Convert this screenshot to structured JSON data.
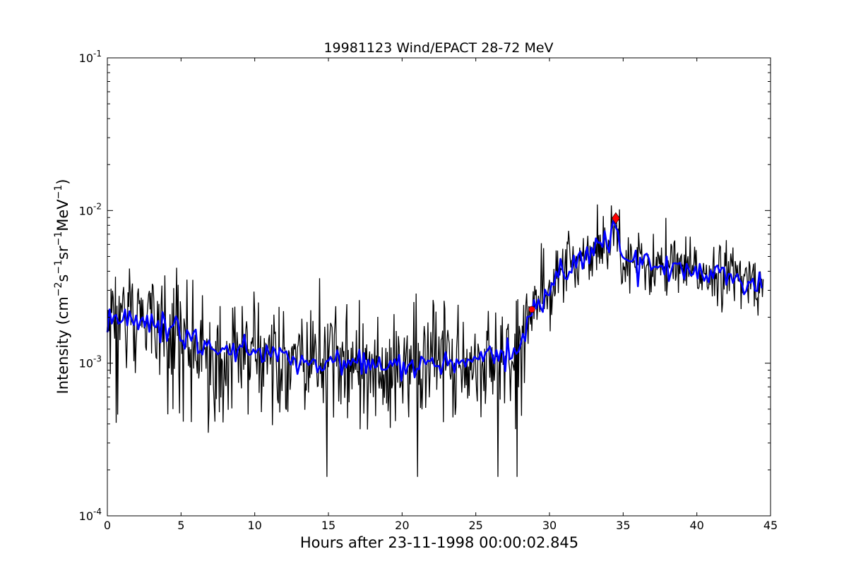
{
  "chart_data": {
    "type": "line",
    "title": "19981123 Wind/EPACT 28-72 MeV",
    "xlabel": "Hours after 23-11-1998 00:00:02.845",
    "ylabel": {
      "prefix": "Intensity (cm",
      "sup1": "−2",
      "mid1": "s",
      "sup2": "−1",
      "mid2": "sr",
      "sup3": "−1",
      "mid3": "MeV",
      "sup4": "−1",
      "suffix": ")"
    },
    "xlim": [
      0,
      45
    ],
    "ylim": [
      0.0001,
      0.1
    ],
    "yscale": "log",
    "grid": false,
    "x_ticks": [
      "0",
      "5",
      "10",
      "15",
      "20",
      "25",
      "30",
      "35",
      "40",
      "45"
    ],
    "y_ticks": [
      {
        "base": "10",
        "exp": "-4"
      },
      {
        "base": "10",
        "exp": "-3"
      },
      {
        "base": "10",
        "exp": "-2"
      },
      {
        "base": "10",
        "exp": "-1"
      }
    ],
    "series": [
      {
        "color": "#000000",
        "style": "thin line, high-frequency noisy raw intensity",
        "x": [
          0,
          1,
          2,
          3,
          4,
          5,
          6,
          7,
          8,
          9,
          10,
          11,
          12,
          13,
          14,
          15,
          16,
          17,
          18,
          19,
          20,
          21,
          22,
          23,
          24,
          25,
          26,
          27,
          28,
          28.5,
          29,
          30,
          31,
          32,
          33,
          34,
          34.5,
          35,
          36,
          37,
          38,
          39,
          40,
          41,
          42,
          43,
          44,
          44.5
        ],
        "y": [
          0.0019,
          0.0019,
          0.0019,
          0.0018,
          0.0017,
          0.0015,
          0.0014,
          0.0013,
          0.0013,
          0.0012,
          0.0012,
          0.0011,
          0.0011,
          0.001,
          0.001,
          0.001,
          0.001,
          0.001,
          0.00095,
          0.00095,
          0.00095,
          0.001,
          0.00095,
          0.001,
          0.001,
          0.001,
          0.00105,
          0.0011,
          0.0013,
          0.0018,
          0.0023,
          0.003,
          0.004,
          0.005,
          0.0055,
          0.0065,
          0.0085,
          0.005,
          0.0045,
          0.0043,
          0.0042,
          0.004,
          0.004,
          0.004,
          0.0039,
          0.0035,
          0.0034,
          0.0032
        ]
      },
      {
        "color": "#0000ff",
        "style": "thick line, smoothed running average",
        "x": [
          0,
          1,
          2,
          3,
          4,
          5,
          6,
          7,
          8,
          9,
          10,
          11,
          12,
          13,
          14,
          15,
          16,
          17,
          18,
          19,
          20,
          21,
          22,
          23,
          24,
          25,
          26,
          27,
          28,
          28.5,
          29,
          30,
          31,
          32,
          33,
          34,
          34.5,
          35,
          36,
          37,
          38,
          39,
          40,
          41,
          42,
          43,
          44,
          44.5
        ],
        "y": [
          0.0019,
          0.0019,
          0.0019,
          0.0018,
          0.0017,
          0.0015,
          0.0014,
          0.0013,
          0.0013,
          0.0012,
          0.0012,
          0.0011,
          0.0011,
          0.001,
          0.001,
          0.001,
          0.001,
          0.001,
          0.00095,
          0.00095,
          0.00095,
          0.001,
          0.00095,
          0.001,
          0.001,
          0.001,
          0.00105,
          0.0011,
          0.0013,
          0.0018,
          0.0023,
          0.003,
          0.004,
          0.005,
          0.0055,
          0.0065,
          0.0085,
          0.005,
          0.0045,
          0.0043,
          0.0042,
          0.004,
          0.004,
          0.004,
          0.0039,
          0.0035,
          0.0034,
          0.0032
        ]
      }
    ],
    "markers": [
      {
        "shape": "circle",
        "color": "#ff0000",
        "x": 28.8,
        "y": 0.00225
      },
      {
        "shape": "diamond",
        "color": "#ff0000",
        "x": 34.5,
        "y": 0.0089
      }
    ]
  }
}
